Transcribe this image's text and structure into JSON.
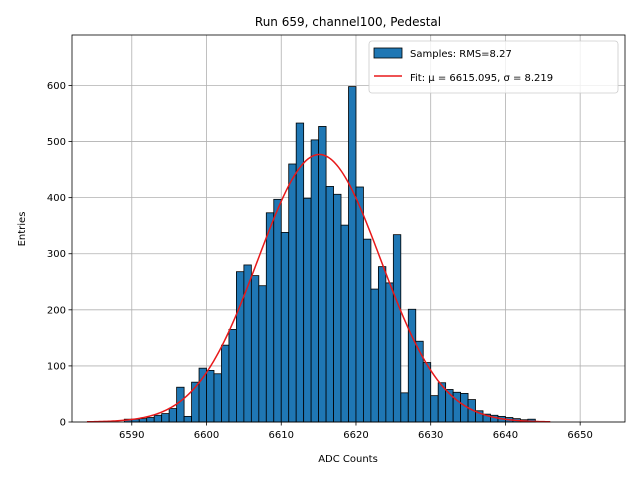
{
  "chart_data": {
    "type": "bar",
    "title": "Run 659, channel100, Pedestal",
    "xlabel": "ADC Counts",
    "ylabel": "Entries",
    "xlim": [
      6582,
      6656
    ],
    "ylim": [
      0,
      690
    ],
    "xticks": [
      6590,
      6600,
      6610,
      6620,
      6630,
      6640,
      6650
    ],
    "yticks": [
      0,
      100,
      200,
      300,
      400,
      500,
      600
    ],
    "grid": true,
    "legend_position": "top-right",
    "bar_color": "#1f77b4",
    "bar_edge_color": "#000000",
    "fit_color": "#e8191a",
    "series": [
      {
        "name": "Samples: RMS=8.27",
        "bins": [
          6589,
          6590,
          6591,
          6592,
          6593,
          6594,
          6595,
          6596,
          6597,
          6598,
          6599,
          6600,
          6601,
          6602,
          6603,
          6604,
          6605,
          6606,
          6607,
          6608,
          6609,
          6610,
          6611,
          6612,
          6613,
          6614,
          6615,
          6616,
          6617,
          6618,
          6619,
          6620,
          6621,
          6622,
          6623,
          6624,
          6625,
          6626,
          6627,
          6628,
          6629,
          6630,
          6631,
          6632,
          6633,
          6634,
          6635,
          6636,
          6637,
          6638,
          6639,
          6640,
          6641,
          6642,
          6643
        ],
        "values": [
          5,
          5,
          6,
          8,
          12,
          15,
          24,
          62,
          10,
          71,
          96,
          92,
          86,
          137,
          165,
          268,
          280,
          261,
          243,
          373,
          397,
          338,
          460,
          533,
          399,
          503,
          527,
          420,
          406,
          351,
          598,
          419,
          326,
          237,
          277,
          248,
          334,
          52,
          201,
          144,
          106,
          47,
          70,
          58,
          53,
          51,
          40,
          20,
          14,
          12,
          10,
          8,
          6,
          4,
          5
        ]
      },
      {
        "name": "Fit: μ = 6615.095, σ = 8.219",
        "type": "line",
        "mu": 6615.095,
        "sigma": 8.219,
        "amplitude": 477,
        "x_range": [
          6584,
          6646
        ]
      }
    ]
  }
}
